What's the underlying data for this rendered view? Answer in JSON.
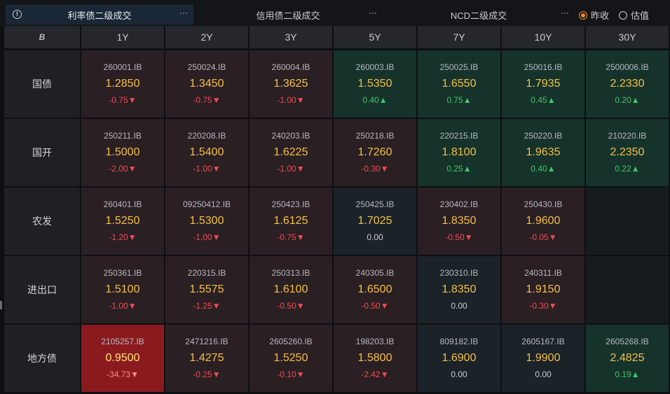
{
  "tabs": [
    {
      "label": "利率债二级成交",
      "active": true
    },
    {
      "label": "信用债二级成交",
      "active": false
    },
    {
      "label": "NCD二级成交",
      "active": false
    }
  ],
  "tab_more_label": "···",
  "price_mode": {
    "options": [
      {
        "label": "昨收",
        "checked": true
      },
      {
        "label": "估值",
        "checked": false
      }
    ]
  },
  "table": {
    "corner_icon": "brand-b-icon",
    "corner_label": "B",
    "columns": [
      "1Y",
      "2Y",
      "3Y",
      "5Y",
      "7Y",
      "10Y",
      "30Y"
    ],
    "rows": [
      {
        "name": "国债",
        "cells": [
          {
            "code": "260001.IB",
            "rate": "1.2850",
            "change": "-0.75▼",
            "dir": "down"
          },
          {
            "code": "250024.IB",
            "rate": "1.3450",
            "change": "-0.75▼",
            "dir": "down"
          },
          {
            "code": "260004.IB",
            "rate": "1.3625",
            "change": "-1.00▼",
            "dir": "down"
          },
          {
            "code": "260003.IB",
            "rate": "1.5350",
            "change": "0.40▲",
            "dir": "up"
          },
          {
            "code": "250025.IB",
            "rate": "1.6550",
            "change": "0.75▲",
            "dir": "up"
          },
          {
            "code": "250016.IB",
            "rate": "1.7935",
            "change": "0.45▲",
            "dir": "up"
          },
          {
            "code": "2500006.IB",
            "rate": "2.2330",
            "change": "0.20▲",
            "dir": "up"
          }
        ]
      },
      {
        "name": "国开",
        "cells": [
          {
            "code": "250211.IB",
            "rate": "1.5000",
            "change": "-2.00▼",
            "dir": "down"
          },
          {
            "code": "220208.IB",
            "rate": "1.5400",
            "change": "-1.00▼",
            "dir": "down"
          },
          {
            "code": "240203.IB",
            "rate": "1.6225",
            "change": "-1.00▼",
            "dir": "down"
          },
          {
            "code": "250218.IB",
            "rate": "1.7260",
            "change": "-0.30▼",
            "dir": "down"
          },
          {
            "code": "220215.IB",
            "rate": "1.8100",
            "change": "0.25▲",
            "dir": "up"
          },
          {
            "code": "250220.IB",
            "rate": "1.9635",
            "change": "0.40▲",
            "dir": "up"
          },
          {
            "code": "210220.IB",
            "rate": "2.2350",
            "change": "0.22▲",
            "dir": "up"
          }
        ]
      },
      {
        "name": "农发",
        "cells": [
          {
            "code": "260401.IB",
            "rate": "1.5250",
            "change": "-1.20▼",
            "dir": "down"
          },
          {
            "code": "09250412.IB",
            "rate": "1.5300",
            "change": "-1.00▼",
            "dir": "down"
          },
          {
            "code": "250423.IB",
            "rate": "1.6125",
            "change": "-0.75▼",
            "dir": "down"
          },
          {
            "code": "250425.IB",
            "rate": "1.7025",
            "change": "0.00",
            "dir": "flat"
          },
          {
            "code": "230402.IB",
            "rate": "1.8350",
            "change": "-0.50▼",
            "dir": "down"
          },
          {
            "code": "250430.IB",
            "rate": "1.9600",
            "change": "-0.05▼",
            "dir": "down"
          },
          {
            "code": "",
            "rate": "",
            "change": "",
            "dir": "empty"
          }
        ]
      },
      {
        "name": "进出口",
        "cells": [
          {
            "code": "250361.IB",
            "rate": "1.5100",
            "change": "-1.00▼",
            "dir": "down"
          },
          {
            "code": "220315.IB",
            "rate": "1.5575",
            "change": "-1.25▼",
            "dir": "down"
          },
          {
            "code": "250313.IB",
            "rate": "1.6100",
            "change": "-0.50▼",
            "dir": "down"
          },
          {
            "code": "240305.IB",
            "rate": "1.6500",
            "change": "-0.50▼",
            "dir": "down"
          },
          {
            "code": "230310.IB",
            "rate": "1.8350",
            "change": "0.00",
            "dir": "flat"
          },
          {
            "code": "240311.IB",
            "rate": "1.9150",
            "change": "-0.30▼",
            "dir": "down"
          },
          {
            "code": "",
            "rate": "",
            "change": "",
            "dir": "empty"
          }
        ]
      },
      {
        "name": "地方债",
        "cells": [
          {
            "code": "2105257.IB",
            "rate": "0.9500",
            "change": "-34.73▼",
            "dir": "strong-down"
          },
          {
            "code": "2471216.IB",
            "rate": "1.4275",
            "change": "-0.25▼",
            "dir": "down"
          },
          {
            "code": "2605260.IB",
            "rate": "1.5250",
            "change": "-0.10▼",
            "dir": "down"
          },
          {
            "code": "198203.IB",
            "rate": "1.5800",
            "change": "-2.42▼",
            "dir": "down"
          },
          {
            "code": "809182.IB",
            "rate": "1.6900",
            "change": "0.00",
            "dir": "flat"
          },
          {
            "code": "2605167.IB",
            "rate": "1.9900",
            "change": "0.00",
            "dir": "flat"
          },
          {
            "code": "2605268.IB",
            "rate": "2.4825",
            "change": "0.19▲",
            "dir": "up"
          }
        ]
      }
    ]
  },
  "colors": {
    "accent": "#f28b26",
    "rate_text": "#f3c04a",
    "down": "#ef4c53",
    "up": "#41c565",
    "cell_down_bg": "#2a1f23",
    "cell_up_bg": "#16332b",
    "cell_flat_bg": "#1b2228",
    "cell_strong_down_bg": "#8b1a1f",
    "cell_empty_bg": "#161b20"
  }
}
